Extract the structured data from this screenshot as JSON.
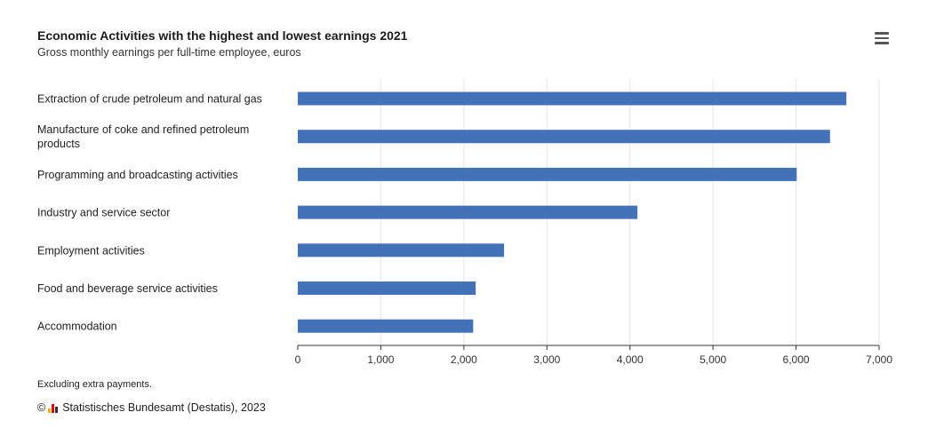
{
  "header": {
    "title": "Economic Activities with the highest and lowest earnings 2021",
    "subtitle": "Gross monthly earnings per full-time employee, euros"
  },
  "menu": {
    "icon": "hamburger-menu-icon"
  },
  "chart_data": {
    "type": "bar",
    "orientation": "horizontal",
    "title": "Economic Activities with the highest and lowest earnings 2021",
    "subtitle": "Gross monthly earnings per full-time employee, euros",
    "categories": [
      [
        "Extraction of crude petroleum and natural gas"
      ],
      [
        "Manufacture of coke and refined petroleum",
        "products"
      ],
      [
        "Programming and broadcasting activities"
      ],
      [
        "Industry and service sector"
      ],
      [
        "Employment activities"
      ],
      [
        "Food and beverage service activities"
      ],
      [
        "Accommodation"
      ]
    ],
    "values": [
      6606,
      6409,
      6008,
      4090,
      2484,
      2142,
      2112
    ],
    "xlim": [
      0,
      7000
    ],
    "ticks": [
      0,
      1000,
      2000,
      3000,
      4000,
      5000,
      6000,
      7000
    ],
    "tick_labels": [
      "0",
      "1,000",
      "2,000",
      "3,000",
      "4,000",
      "5,000",
      "6,000",
      "7,000"
    ],
    "grid": "vertical",
    "bar_color": "#4372b8",
    "grid_color": "#e6e6e6"
  },
  "footer": {
    "note": "Excluding extra payments.",
    "copyright_symbol": "©",
    "logo_icon": "destatis-logo-icon",
    "credit": "Statistisches Bundesamt (Destatis), 2023"
  }
}
